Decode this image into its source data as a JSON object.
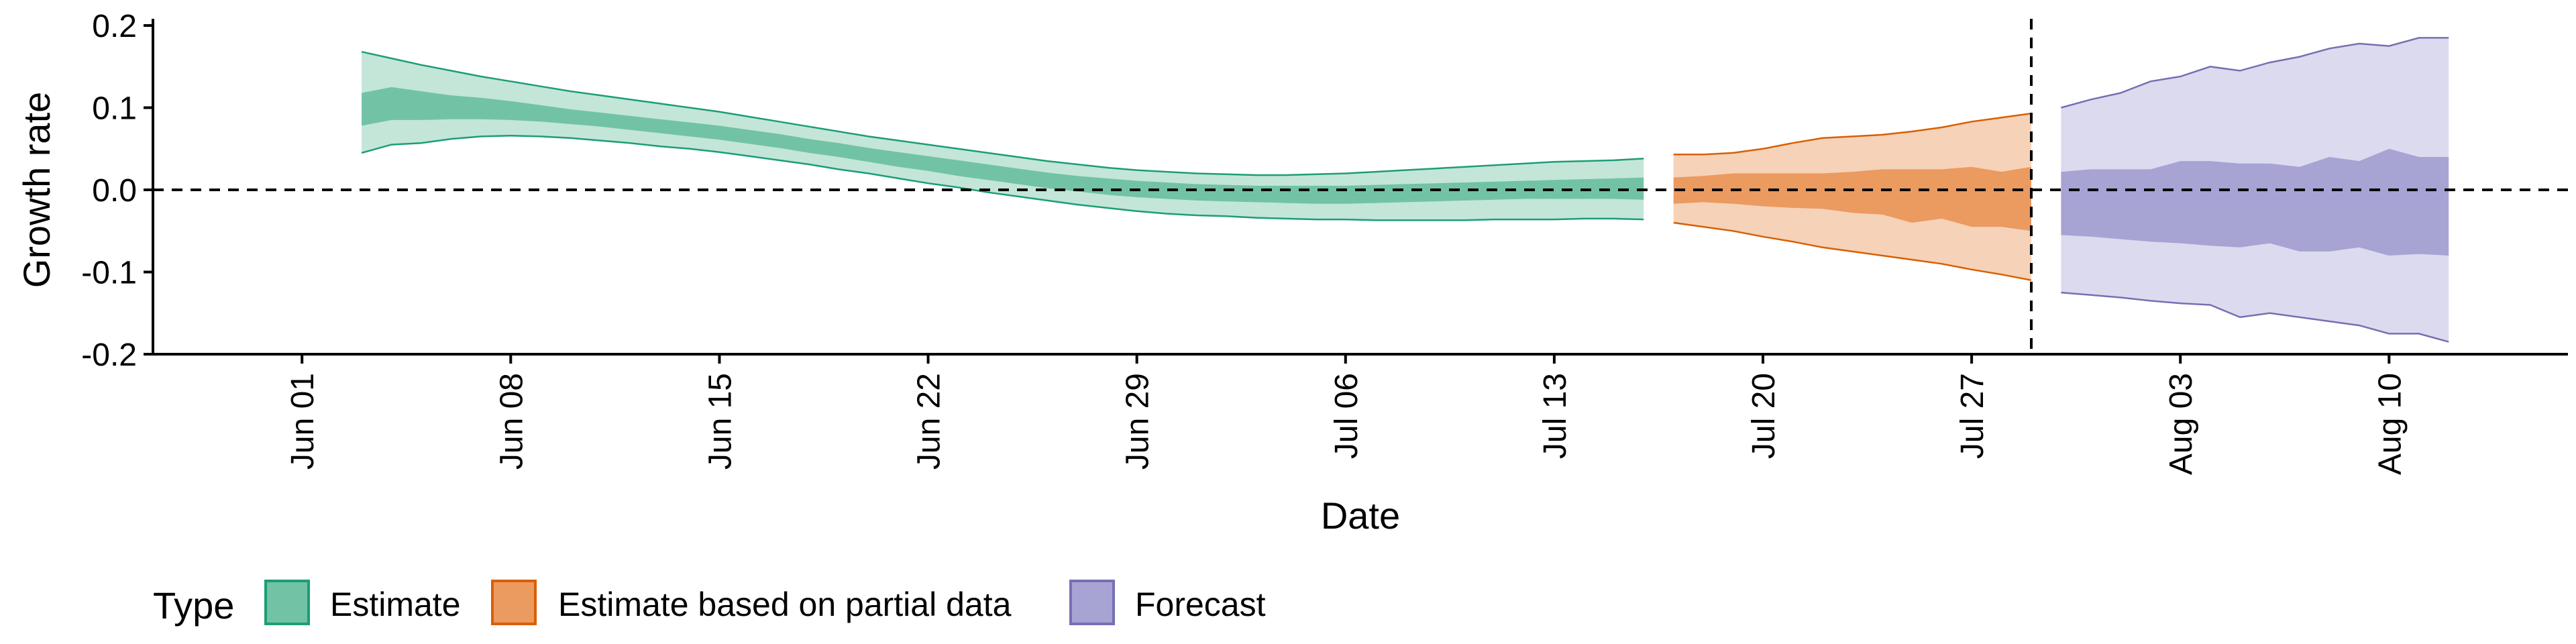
{
  "chart_data": {
    "type": "area",
    "xlabel": "Date",
    "ylabel": "Growth rate",
    "ylim": [
      -0.2,
      0.2
    ],
    "yticks": [
      -0.2,
      -0.1,
      0.0,
      0.1,
      0.2
    ],
    "ytick_labels": [
      "-0.2",
      "-0.1",
      "0.0",
      "0.1",
      "0.2"
    ],
    "xlim": [
      "2020-05-27",
      "2020-08-16"
    ],
    "xticks": [
      "2020-06-01",
      "2020-06-08",
      "2020-06-15",
      "2020-06-22",
      "2020-06-29",
      "2020-07-06",
      "2020-07-13",
      "2020-07-20",
      "2020-07-27",
      "2020-08-03",
      "2020-08-10"
    ],
    "xtick_labels": [
      "Jun 01",
      "Jun 08",
      "Jun 15",
      "Jun 22",
      "Jun 29",
      "Jul 06",
      "Jul 13",
      "Jul 20",
      "Jul 27",
      "Aug 03",
      "Aug 10"
    ],
    "reference_lines": {
      "horizontal_y": 0.0,
      "vertical_x": "2020-07-29"
    },
    "legend": {
      "title": "Type",
      "placement": "bottom-left",
      "items": [
        {
          "label": "Estimate",
          "fill": "#72c3a6",
          "stroke": "#1b9e77"
        },
        {
          "label": "Estimate based on partial data",
          "fill": "#eb9a60",
          "stroke": "#d95f02"
        },
        {
          "label": "Forecast",
          "fill": "#a7a3d3",
          "stroke": "#7570b3"
        }
      ]
    },
    "series": [
      {
        "name": "Estimate",
        "outer_fill": "#c3e6d8",
        "inner_fill": "#72c3a6",
        "stroke": "#1b9e77",
        "x": [
          "2020-06-03",
          "2020-06-04",
          "2020-06-05",
          "2020-06-06",
          "2020-06-07",
          "2020-06-08",
          "2020-06-09",
          "2020-06-10",
          "2020-06-11",
          "2020-06-12",
          "2020-06-13",
          "2020-06-14",
          "2020-06-15",
          "2020-06-16",
          "2020-06-17",
          "2020-06-18",
          "2020-06-19",
          "2020-06-20",
          "2020-06-21",
          "2020-06-22",
          "2020-06-23",
          "2020-06-24",
          "2020-06-25",
          "2020-06-26",
          "2020-06-27",
          "2020-06-28",
          "2020-06-29",
          "2020-06-30",
          "2020-07-01",
          "2020-07-02",
          "2020-07-03",
          "2020-07-04",
          "2020-07-05",
          "2020-07-06",
          "2020-07-07",
          "2020-07-08",
          "2020-07-09",
          "2020-07-10",
          "2020-07-11",
          "2020-07-12",
          "2020-07-13",
          "2020-07-14",
          "2020-07-15",
          "2020-07-16"
        ],
        "lower_90": [
          0.045,
          0.055,
          0.057,
          0.062,
          0.065,
          0.066,
          0.065,
          0.063,
          0.06,
          0.057,
          0.053,
          0.05,
          0.046,
          0.041,
          0.036,
          0.031,
          0.025,
          0.02,
          0.014,
          0.008,
          0.003,
          -0.003,
          -0.008,
          -0.013,
          -0.018,
          -0.022,
          -0.026,
          -0.029,
          -0.031,
          -0.032,
          -0.034,
          -0.035,
          -0.036,
          -0.036,
          -0.037,
          -0.037,
          -0.037,
          -0.037,
          -0.036,
          -0.036,
          -0.036,
          -0.035,
          -0.035,
          -0.036
        ],
        "upper_90": [
          0.168,
          0.16,
          0.152,
          0.145,
          0.138,
          0.132,
          0.126,
          0.12,
          0.115,
          0.11,
          0.105,
          0.1,
          0.095,
          0.089,
          0.083,
          0.077,
          0.071,
          0.065,
          0.06,
          0.055,
          0.05,
          0.045,
          0.04,
          0.035,
          0.031,
          0.027,
          0.024,
          0.022,
          0.02,
          0.019,
          0.018,
          0.018,
          0.019,
          0.02,
          0.022,
          0.024,
          0.026,
          0.028,
          0.03,
          0.032,
          0.034,
          0.035,
          0.036,
          0.038
        ],
        "lower_50": [
          0.078,
          0.085,
          0.085,
          0.086,
          0.086,
          0.085,
          0.083,
          0.08,
          0.077,
          0.073,
          0.069,
          0.065,
          0.061,
          0.056,
          0.051,
          0.045,
          0.04,
          0.034,
          0.028,
          0.023,
          0.017,
          0.012,
          0.007,
          0.002,
          -0.002,
          -0.006,
          -0.009,
          -0.011,
          -0.013,
          -0.014,
          -0.015,
          -0.016,
          -0.017,
          -0.017,
          -0.016,
          -0.015,
          -0.014,
          -0.013,
          -0.012,
          -0.011,
          -0.011,
          -0.011,
          -0.011,
          -0.012
        ],
        "upper_50": [
          0.118,
          0.125,
          0.12,
          0.115,
          0.112,
          0.108,
          0.103,
          0.098,
          0.094,
          0.09,
          0.086,
          0.082,
          0.078,
          0.073,
          0.068,
          0.062,
          0.057,
          0.051,
          0.046,
          0.041,
          0.036,
          0.031,
          0.026,
          0.021,
          0.017,
          0.014,
          0.011,
          0.009,
          0.007,
          0.006,
          0.005,
          0.005,
          0.005,
          0.005,
          0.006,
          0.007,
          0.008,
          0.009,
          0.01,
          0.011,
          0.012,
          0.013,
          0.014,
          0.015
        ]
      },
      {
        "name": "Estimate based on partial data",
        "outer_fill": "#f5d2b8",
        "inner_fill": "#eb9a60",
        "stroke": "#d95f02",
        "x": [
          "2020-07-17",
          "2020-07-18",
          "2020-07-19",
          "2020-07-20",
          "2020-07-21",
          "2020-07-22",
          "2020-07-23",
          "2020-07-24",
          "2020-07-25",
          "2020-07-26",
          "2020-07-27",
          "2020-07-28",
          "2020-07-29"
        ],
        "lower_90": [
          -0.04,
          -0.045,
          -0.05,
          -0.057,
          -0.063,
          -0.07,
          -0.075,
          -0.08,
          -0.085,
          -0.09,
          -0.097,
          -0.103,
          -0.11
        ],
        "upper_90": [
          0.043,
          0.043,
          0.045,
          0.05,
          0.057,
          0.063,
          0.065,
          0.067,
          0.071,
          0.076,
          0.083,
          0.088,
          0.093
        ],
        "lower_50": [
          -0.017,
          -0.015,
          -0.017,
          -0.02,
          -0.022,
          -0.023,
          -0.028,
          -0.03,
          -0.04,
          -0.035,
          -0.045,
          -0.045,
          -0.05
        ],
        "upper_50": [
          0.015,
          0.017,
          0.02,
          0.02,
          0.02,
          0.02,
          0.022,
          0.025,
          0.025,
          0.025,
          0.028,
          0.022,
          0.028
        ]
      },
      {
        "name": "Forecast",
        "outer_fill": "#dcdaee",
        "inner_fill": "#a7a3d3",
        "stroke": "#7570b3",
        "x": [
          "2020-07-30",
          "2020-07-31",
          "2020-08-01",
          "2020-08-02",
          "2020-08-03",
          "2020-08-04",
          "2020-08-05",
          "2020-08-06",
          "2020-08-07",
          "2020-08-08",
          "2020-08-09",
          "2020-08-10",
          "2020-08-11",
          "2020-08-12"
        ],
        "lower_90": [
          -0.125,
          -0.128,
          -0.131,
          -0.135,
          -0.138,
          -0.14,
          -0.155,
          -0.15,
          -0.155,
          -0.16,
          -0.165,
          -0.175,
          -0.175,
          -0.185
        ],
        "upper_90": [
          0.1,
          0.11,
          0.118,
          0.132,
          0.138,
          0.15,
          0.145,
          0.155,
          0.162,
          0.172,
          0.178,
          0.175,
          0.185,
          0.185
        ],
        "lower_50": [
          -0.055,
          -0.057,
          -0.06,
          -0.063,
          -0.065,
          -0.068,
          -0.07,
          -0.065,
          -0.075,
          -0.075,
          -0.07,
          -0.08,
          -0.078,
          -0.08
        ],
        "upper_50": [
          0.022,
          0.025,
          0.025,
          0.025,
          0.035,
          0.035,
          0.032,
          0.032,
          0.028,
          0.04,
          0.035,
          0.05,
          0.04,
          0.04
        ]
      }
    ]
  }
}
